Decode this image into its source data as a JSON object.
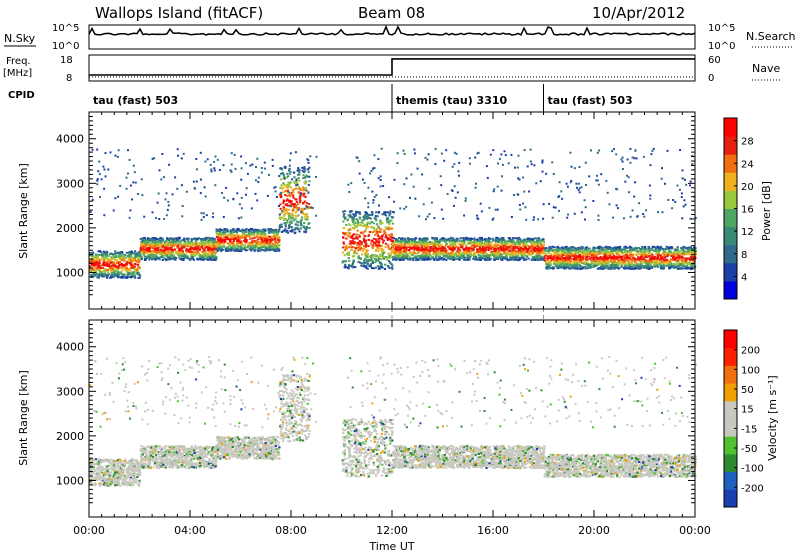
{
  "header": {
    "station": "Wallops Island (fitACF)",
    "beam": "Beam 08",
    "date": "10/Apr/2012"
  },
  "top_panels": {
    "nsky_label": "N.Sky",
    "nsky_ticks": [
      "10^5",
      "10^0"
    ],
    "nsearch_label": "N.Search",
    "freq_label_1": "Freq.",
    "freq_label_2": "[MHz]",
    "freq_ticks": [
      "18",
      "8"
    ],
    "nave_label": "Nave",
    "nave_ticks": [
      "60",
      "0"
    ],
    "cpid_label": "CPID",
    "modes": [
      {
        "name": "tau (fast) 503",
        "start_hour": 0
      },
      {
        "name": "themis (tau) 3310",
        "start_hour": 12
      },
      {
        "name": "tau (fast) 503",
        "start_hour": 18
      }
    ],
    "freq_steps": [
      {
        "from_hour": 0,
        "to_hour": 12,
        "mhz": 10.3
      },
      {
        "from_hour": 12,
        "to_hour": 24,
        "mhz": 16.5
      }
    ]
  },
  "power_panel": {
    "ylabel": "Slant Range [km]",
    "yticks": [
      "4000",
      "3000",
      "2000",
      "1000"
    ],
    "colorbar_label": "Power [dB]",
    "colorbar_ticks": [
      "28",
      "24",
      "20",
      "16",
      "12",
      "8",
      "4"
    ],
    "colors": [
      "#0000dd",
      "#1b3fa6",
      "#2e6a8c",
      "#3b8a76",
      "#4fa563",
      "#9ac83c",
      "#f0b020",
      "#f07010",
      "#e82010",
      "#ff0000"
    ]
  },
  "velocity_panel": {
    "ylabel": "Slant Range [km]",
    "yticks": [
      "4000",
      "3000",
      "2000",
      "1000"
    ],
    "colorbar_label": "Velocity [m s⁻¹]",
    "colorbar_ticks": [
      "200",
      "100",
      "50",
      "15",
      "-15",
      "-50",
      "-100",
      "-200"
    ],
    "colors": [
      "#1a3fb0",
      "#2060c0",
      "#2e8a2e",
      "#50c030",
      "#c8c8c0",
      "#c8c8c0",
      "#f0a000",
      "#f07010",
      "#ff2000",
      "#ff0000"
    ]
  },
  "x_axis": {
    "ticks": [
      "00:00",
      "04:00",
      "08:00",
      "12:00",
      "16:00",
      "20:00",
      "00:00"
    ],
    "label": "Time UT"
  },
  "chart_data": {
    "type": "heatmap",
    "title": "Wallops Island (fitACF) Beam 08 10/Apr/2012",
    "xlabel": "Time UT",
    "ylabel": "Slant Range [km]",
    "xlim": [
      0,
      24
    ],
    "ylim": [
      180,
      4600
    ],
    "scatter_bands": [
      {
        "from_hour": 0.0,
        "to_hour": 2.0,
        "range_km": [
          900,
          1500
        ]
      },
      {
        "from_hour": 2.0,
        "to_hour": 5.0,
        "range_km": [
          1300,
          1800
        ]
      },
      {
        "from_hour": 5.0,
        "to_hour": 7.5,
        "range_km": [
          1500,
          2000
        ]
      },
      {
        "from_hour": 7.5,
        "to_hour": 8.7,
        "range_km": [
          1900,
          3400
        ]
      },
      {
        "from_hour": 10.0,
        "to_hour": 12.0,
        "range_km": [
          1100,
          2400
        ]
      },
      {
        "from_hour": 12.0,
        "to_hour": 18.0,
        "range_km": [
          1300,
          1800
        ]
      },
      {
        "from_hour": 18.0,
        "to_hour": 24.0,
        "range_km": [
          1100,
          1600
        ]
      }
    ],
    "power_colorbar_db": [
      4,
      8,
      12,
      16,
      20,
      24,
      28
    ],
    "velocity_colorbar_ms": [
      -200,
      -100,
      -50,
      -15,
      15,
      50,
      100,
      200
    ]
  }
}
